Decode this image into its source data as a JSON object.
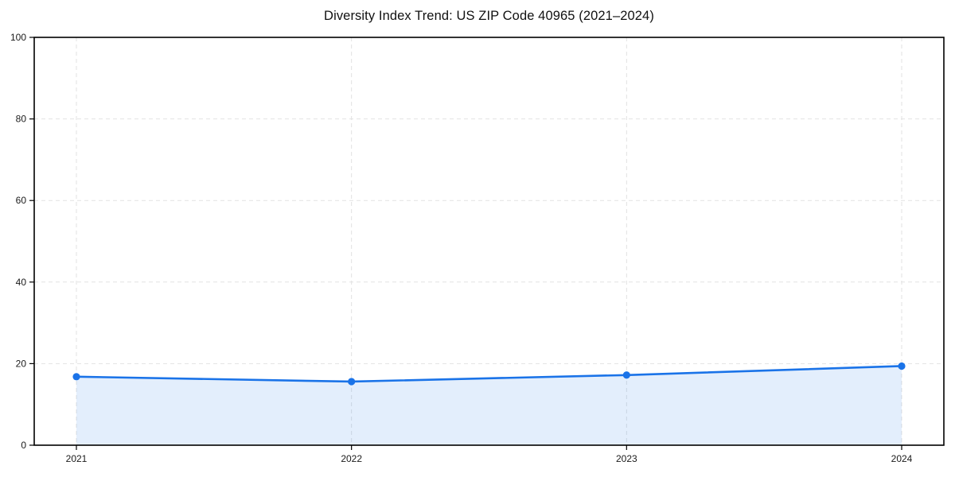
{
  "chart_data": {
    "type": "area",
    "title": "Diversity Index Trend: US ZIP Code 40965 (2021–2024)",
    "xlabel": "",
    "ylabel": "",
    "categories": [
      "2021",
      "2022",
      "2023",
      "2024"
    ],
    "values": [
      16.8,
      15.6,
      17.2,
      19.4
    ],
    "ylim": [
      0,
      100
    ],
    "yticks": [
      0,
      20,
      40,
      60,
      80,
      100
    ],
    "grid": "dashed-both-axes",
    "legend_position": "none",
    "colors": {
      "line": "#1a73e8",
      "marker": "#1a73e8",
      "area_fill": "rgba(26,115,232,0.12)",
      "grid": "#e2e2e2",
      "axis_border": "#000000",
      "tick_text": "#1a1a1a",
      "background": "#ffffff"
    }
  }
}
